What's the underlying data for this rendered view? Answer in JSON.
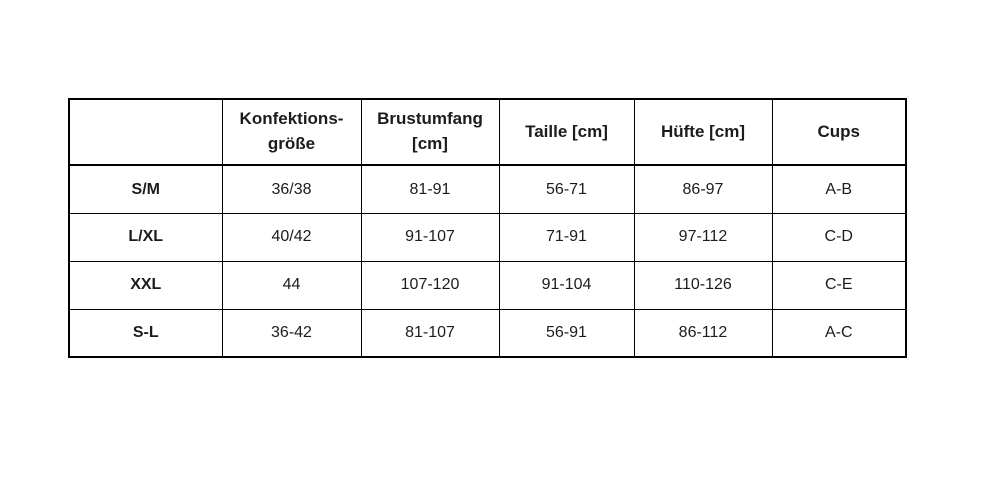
{
  "page": {
    "background_color": "#ffffff",
    "border_color": "#000000",
    "text_color": "#1c1c1c"
  },
  "size_table": {
    "headers": [
      {
        "label": ""
      },
      {
        "label": "Konfektions-\ngröße"
      },
      {
        "label": "Brustumfang\n[cm]"
      },
      {
        "label": "Taille [cm]"
      },
      {
        "label": "Hüfte [cm]"
      },
      {
        "label": "Cups"
      }
    ],
    "rows": [
      {
        "label": "S/M",
        "values": [
          "36/38",
          "81-91",
          "56-71",
          "86-97",
          "A-B"
        ]
      },
      {
        "label": "L/XL",
        "values": [
          "40/42",
          "91-107",
          "71-91",
          "97-112",
          "C-D"
        ]
      },
      {
        "label": "XXL",
        "values": [
          "44",
          "107-120",
          "91-104",
          "110-126",
          "C-E"
        ]
      },
      {
        "label": "S-L",
        "values": [
          "36-42",
          "81-107",
          "56-91",
          "86-112",
          "A-C"
        ]
      }
    ]
  }
}
